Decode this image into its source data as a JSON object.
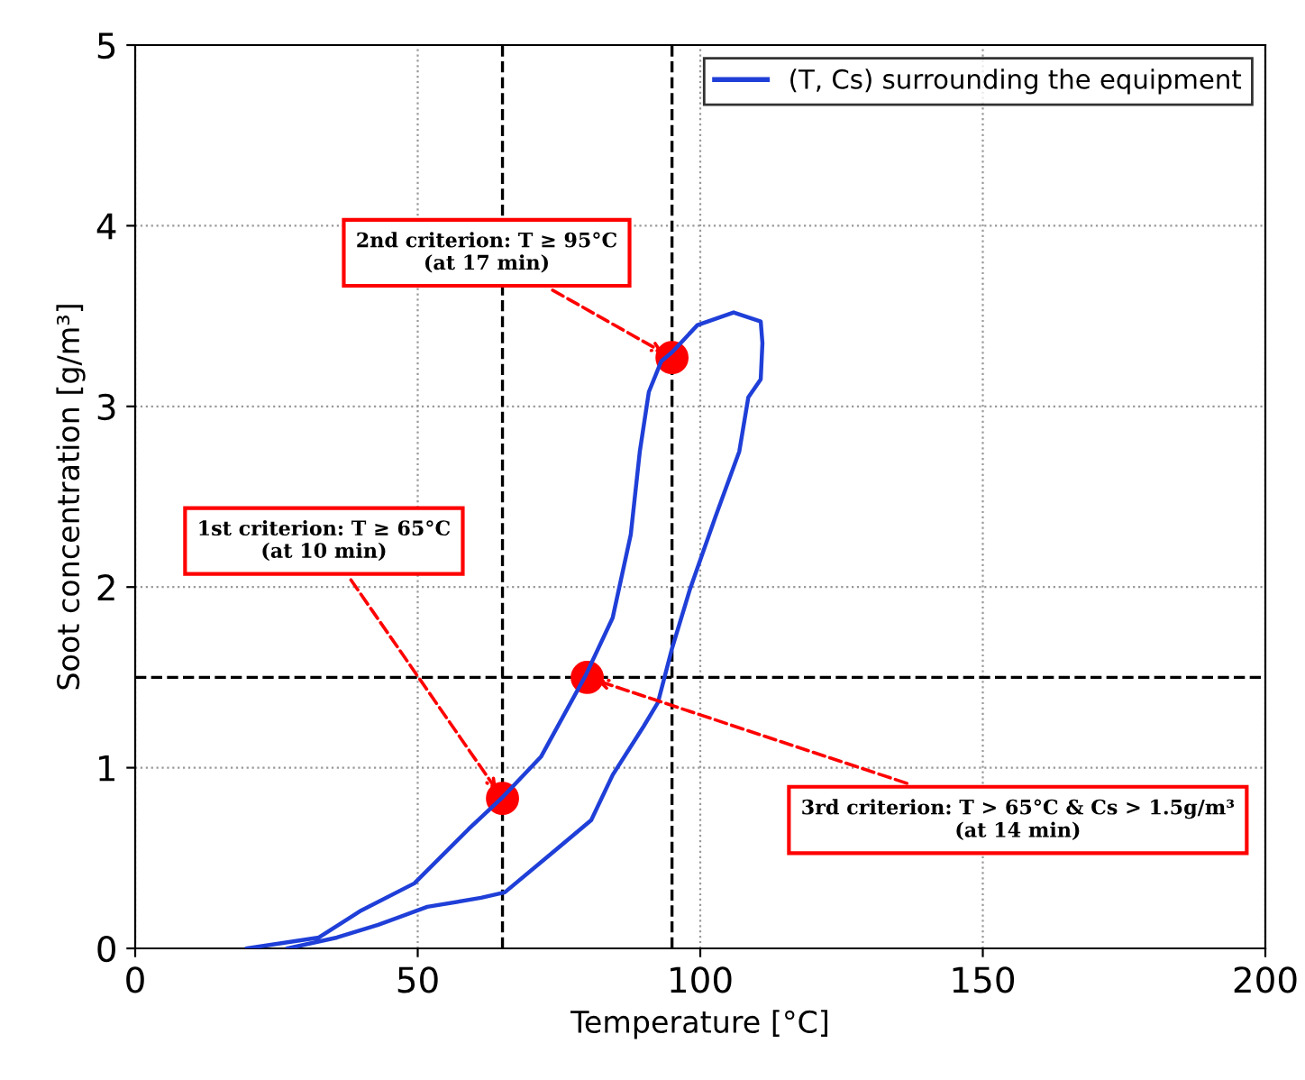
{
  "chart_data": {
    "type": "line",
    "xlabel": "Temperature [°C]",
    "ylabel": "Soot concentration [g/m³]",
    "xlim": [
      0,
      200
    ],
    "xticks": [
      0,
      50,
      100,
      150,
      200
    ],
    "ylim": [
      0,
      5
    ],
    "yticks": [
      0,
      1,
      2,
      3,
      4,
      5
    ],
    "grid": true,
    "legend": "top right",
    "series": [
      {
        "name": "(T, Cs) surrounding the equipment",
        "color": "#1f3fd8",
        "x": [
          19.8,
          32.5,
          40,
          49.4,
          59,
          64.8,
          71.8,
          79.7,
          84.5,
          87.7,
          89.3,
          90.9,
          93.1,
          95,
          99.5,
          105.9,
          110.7,
          111,
          110.7,
          108.5,
          106.9,
          102.7,
          98.2,
          95,
          92.5,
          90,
          84.5,
          80.7,
          75,
          65.4,
          61.2,
          51.7,
          43,
          35.7,
          27
        ],
        "values": [
          0,
          0.06,
          0.21,
          0.36,
          0.66,
          0.83,
          1.06,
          1.51,
          1.83,
          2.29,
          2.75,
          3.08,
          3.25,
          3.3,
          3.45,
          3.52,
          3.47,
          3.35,
          3.15,
          3.05,
          2.75,
          2.39,
          1.99,
          1.66,
          1.36,
          1.23,
          0.96,
          0.71,
          0.56,
          0.31,
          0.28,
          0.23,
          0.13,
          0.06,
          0
        ]
      },
      {
        "type": "scatter",
        "marker": "circle",
        "color": "#ff0000",
        "x": [
          65,
          80,
          95
        ],
        "values": [
          0.83,
          1.5,
          3.27
        ]
      }
    ],
    "ref_lines": [
      {
        "axis": "x",
        "value": 65,
        "color": "#000000",
        "line_style": "dashed"
      },
      {
        "axis": "x",
        "value": 95,
        "color": "#000000",
        "line_style": "dashed"
      },
      {
        "axis": "y",
        "value": 1.5,
        "color": "#000000",
        "line_style": "dashed"
      }
    ],
    "annotations": [
      {
        "text": "1st criterion: T ≥ 65°C\n(at 10 min)",
        "x": 65,
        "y": 0.83
      },
      {
        "text": "2nd criterion: T ≥ 95°C\n(at 17 min)",
        "x": 95,
        "y": 3.27
      },
      {
        "text": "3rd criterion: T > 65°C & Cs > 1.5g/m³\n(at 14 min)",
        "x": 80,
        "y": 1.5
      }
    ]
  }
}
